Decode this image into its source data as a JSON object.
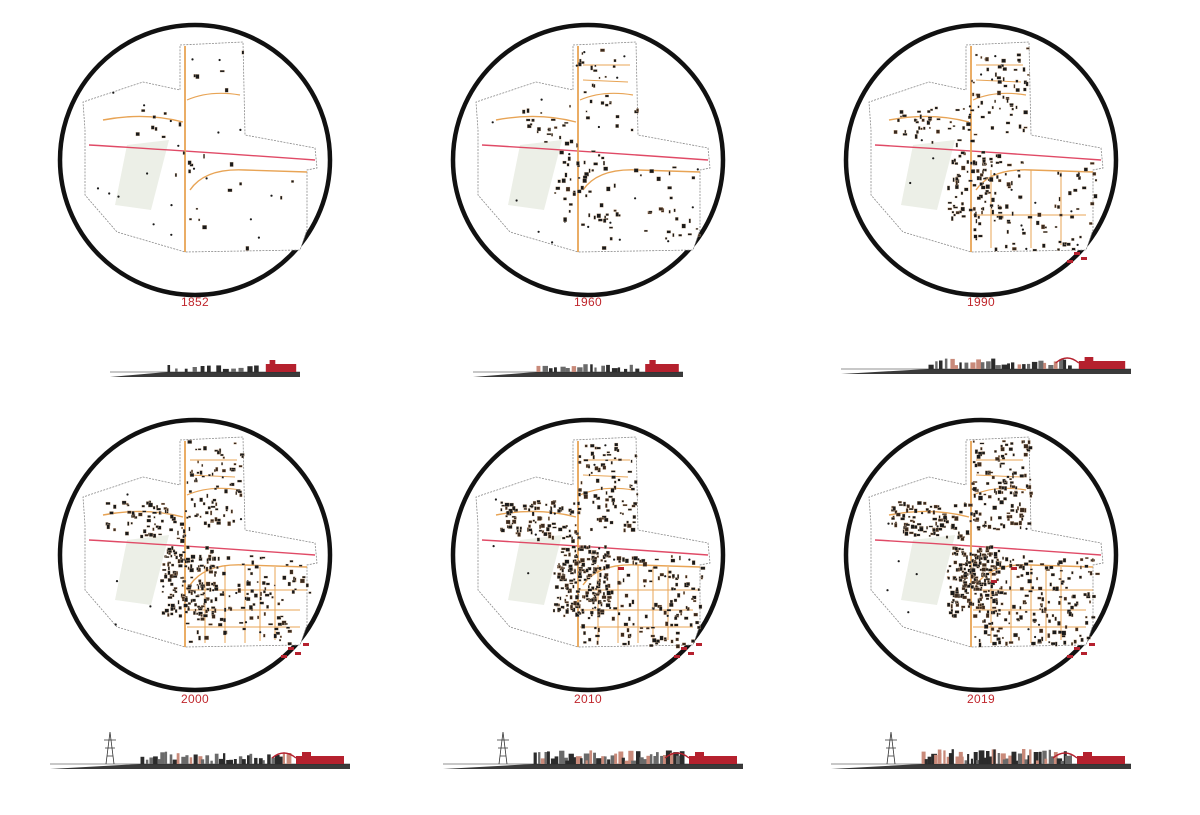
{
  "colors": {
    "road": "#e8a455",
    "rail": "#e04a66",
    "building": "#1a1a1a",
    "infill": "#e6c7a8",
    "landmark": "#b5212e",
    "green": "#ecefe7",
    "ground": "#3a3a3a",
    "year_text": "#c0272d"
  },
  "panels": [
    {
      "year": "1852",
      "density": 0.05
    },
    {
      "year": "1960",
      "density": 0.22
    },
    {
      "year": "1990",
      "density": 0.45
    },
    {
      "year": "2000",
      "density": 0.68
    },
    {
      "year": "2010",
      "density": 0.84
    },
    {
      "year": "2019",
      "density": 1.0
    }
  ]
}
